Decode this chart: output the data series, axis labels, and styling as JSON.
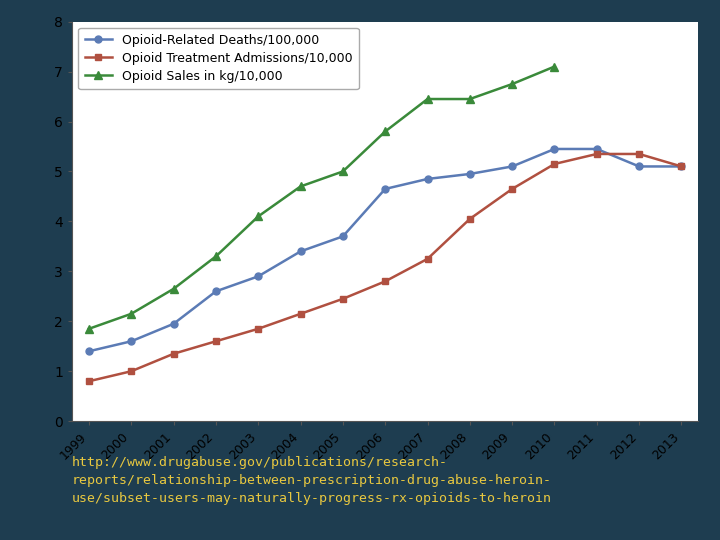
{
  "years": [
    1999,
    2000,
    2001,
    2002,
    2003,
    2004,
    2005,
    2006,
    2007,
    2008,
    2009,
    2010,
    2011,
    2012,
    2013
  ],
  "deaths": [
    1.4,
    1.6,
    1.95,
    2.6,
    2.9,
    3.4,
    3.7,
    4.65,
    4.85,
    4.95,
    5.1,
    5.45,
    5.45,
    5.1,
    5.1
  ],
  "admissions": [
    0.8,
    1.0,
    1.35,
    1.6,
    1.85,
    2.15,
    2.45,
    2.8,
    3.25,
    4.05,
    4.65,
    5.15,
    5.35,
    5.35,
    5.1
  ],
  "sales": [
    1.85,
    2.15,
    2.65,
    3.3,
    4.1,
    4.7,
    5.0,
    5.8,
    6.45,
    6.45,
    6.75,
    7.1,
    null,
    null,
    null
  ],
  "deaths_color": "#5b7bb5",
  "admissions_color": "#b05040",
  "sales_color": "#3a8a3a",
  "legend_labels": [
    "Opioid-Related Deaths/100,000",
    "Opioid Treatment Admissions/10,000",
    "Opioid Sales in kg/10,000"
  ],
  "ylim": [
    0,
    8
  ],
  "yticks": [
    0,
    1,
    2,
    3,
    4,
    5,
    6,
    7,
    8
  ],
  "plot_bg_color": "#ffffff",
  "outer_bg_color": "#1e3d50",
  "caption_line1": "http://www.drugabuse.gov/publications/research-",
  "caption_line2": "reports/relationship-between-prescription-drug-abuse-heroin-",
  "caption_line3": "use/subset-users-may-naturally-progress-rx-opioids-to-heroin",
  "caption_color": "#e8c840",
  "caption_fontsize": 9.5
}
